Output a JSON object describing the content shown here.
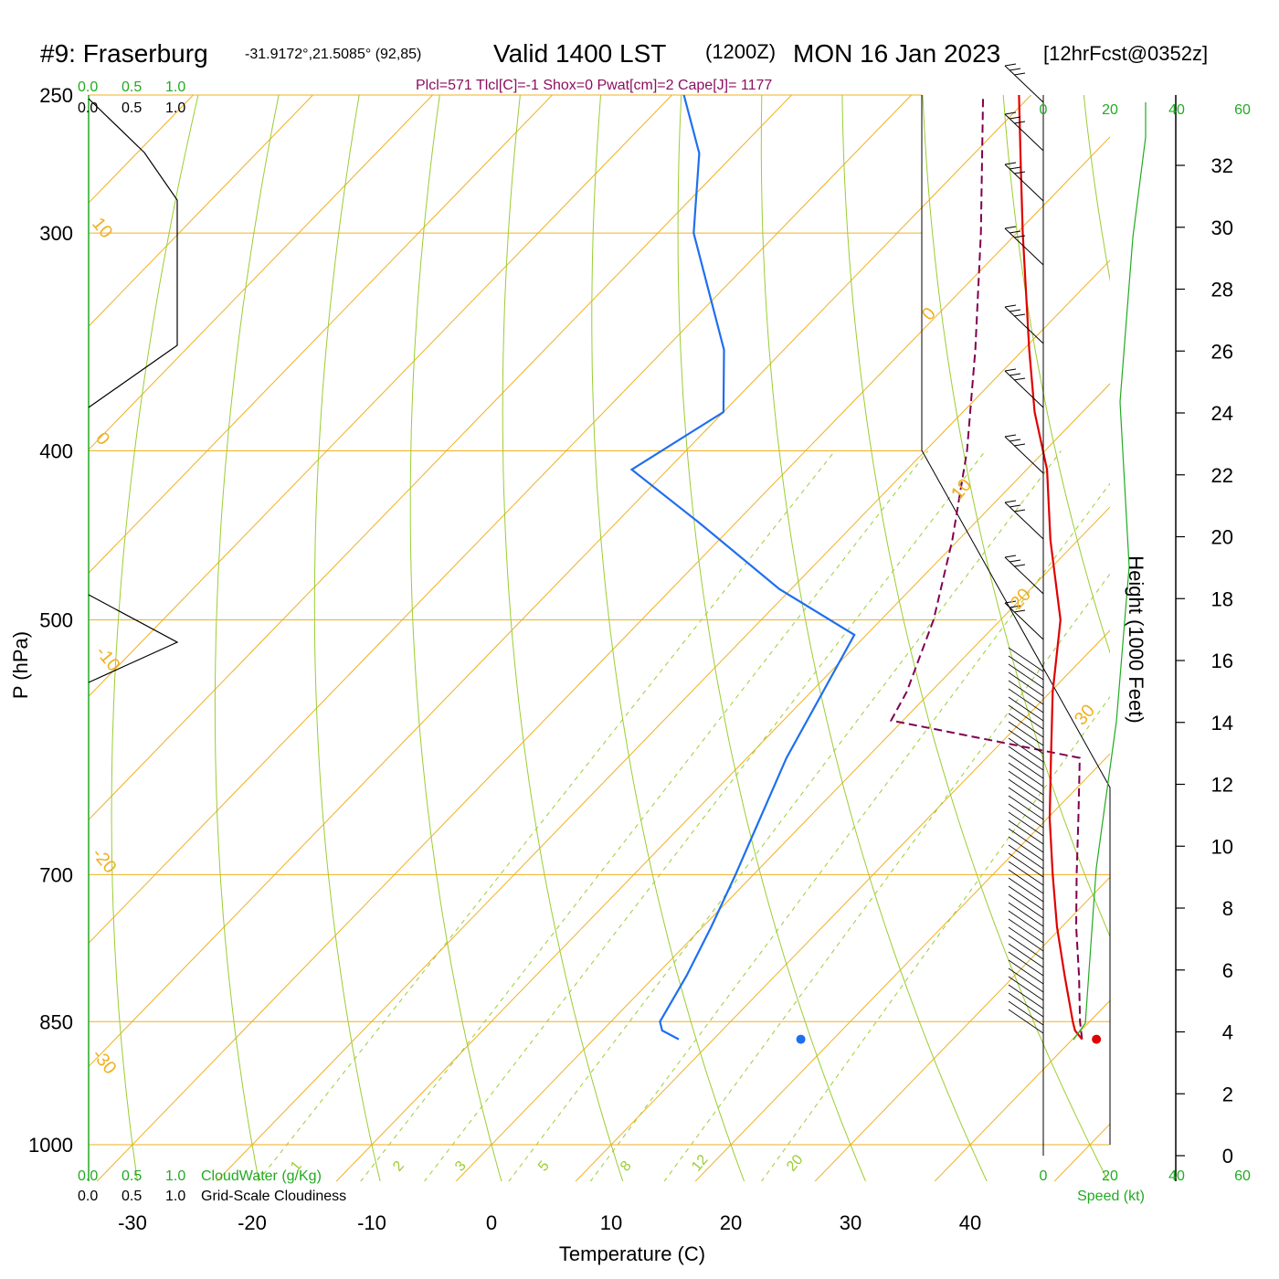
{
  "header": {
    "station": "#9: Fraserburg",
    "coords": "-31.9172°,21.5085° (92,85)",
    "valid": "Valid 1400 LST",
    "utc": "(1200Z)",
    "date": "MON 16 Jan 2023",
    "forecast": "[12hrFcst@0352z]",
    "indices": "Plcl=571 Tlcl[C]=-1 Shox=0 Pwat[cm]=2 Cape[J]= 1177"
  },
  "colors": {
    "temperature": "#e00000",
    "dewpoint": "#1e6ff0",
    "parcel": "#800050",
    "isotherm": "#f0b020",
    "dry_adiabat": "#9acd32",
    "mixing_ratio": "#9acd32",
    "wind_speed": "#22aa22",
    "cloud": "#000000"
  },
  "chart_data": {
    "type": "skew-t",
    "xlabel": "Temperature (C)",
    "ylabel": "P (hPa)",
    "right_axis_label": "Height (1000 Feet)",
    "x_ticks": [
      "-30",
      "-20",
      "-10",
      "0",
      "10",
      "20",
      "30",
      "40"
    ],
    "pressure_ticks": [
      "250",
      "300",
      "400",
      "500",
      "700",
      "850",
      "1000"
    ],
    "pressure_values": [
      250,
      300,
      400,
      500,
      700,
      850,
      1000
    ],
    "height_ticks": [
      "0",
      "2",
      "4",
      "6",
      "8",
      "10",
      "12",
      "14",
      "16",
      "18",
      "20",
      "22",
      "24",
      "26",
      "28",
      "30",
      "32"
    ],
    "height_values": [
      0,
      2,
      4,
      6,
      8,
      10,
      12,
      14,
      16,
      18,
      20,
      22,
      24,
      26,
      28,
      30,
      32
    ],
    "isotherm_labels": [
      "10",
      "0",
      "-10",
      "-20",
      "-30",
      "0",
      "10",
      "20",
      "30"
    ],
    "mixing_ratio_labels": [
      "1",
      "2",
      "3",
      "5",
      "8",
      "12",
      "20"
    ],
    "temperature_profile": [
      {
        "p": 870,
        "t": 40.8
      },
      {
        "p": 860,
        "t": 39.5
      },
      {
        "p": 850,
        "t": 38.6
      },
      {
        "p": 800,
        "t": 34.2
      },
      {
        "p": 750,
        "t": 29.6
      },
      {
        "p": 700,
        "t": 25.0
      },
      {
        "p": 650,
        "t": 20.2
      },
      {
        "p": 600,
        "t": 15.4
      },
      {
        "p": 550,
        "t": 10.2
      },
      {
        "p": 500,
        "t": 5.0
      },
      {
        "p": 450,
        "t": -2.3
      },
      {
        "p": 410,
        "t": -8.3
      },
      {
        "p": 380,
        "t": -14.0
      },
      {
        "p": 350,
        "t": -19.5
      },
      {
        "p": 300,
        "t": -29.5
      },
      {
        "p": 275,
        "t": -35.0
      },
      {
        "p": 250,
        "t": -41.0
      }
    ],
    "dewpoint_profile": [
      {
        "p": 870,
        "t": 7.1
      },
      {
        "p": 860,
        "t": 5.0
      },
      {
        "p": 850,
        "t": 4.1
      },
      {
        "p": 800,
        "t": 2.6
      },
      {
        "p": 750,
        "t": 0.7
      },
      {
        "p": 700,
        "t": -1.5
      },
      {
        "p": 650,
        "t": -4.0
      },
      {
        "p": 600,
        "t": -6.7
      },
      {
        "p": 550,
        "t": -9.0
      },
      {
        "p": 510,
        "t": -11.0
      },
      {
        "p": 480,
        "t": -21.0
      },
      {
        "p": 440,
        "t": -33.0
      },
      {
        "p": 410,
        "t": -43.0
      },
      {
        "p": 380,
        "t": -40.0
      },
      {
        "p": 350,
        "t": -45.0
      },
      {
        "p": 300,
        "t": -57.0
      },
      {
        "p": 270,
        "t": -63.0
      },
      {
        "p": 250,
        "t": -69.0
      }
    ],
    "parcel_profile": [
      {
        "p": 870,
        "t": 40.8
      },
      {
        "p": 850,
        "t": 39.2
      },
      {
        "p": 800,
        "t": 35.4
      },
      {
        "p": 750,
        "t": 31.2
      },
      {
        "p": 700,
        "t": 27.0
      },
      {
        "p": 650,
        "t": 22.6
      },
      {
        "p": 600,
        "t": 17.8
      },
      {
        "p": 571,
        "t": -1.0
      },
      {
        "p": 550,
        "t": -2.0
      },
      {
        "p": 500,
        "t": -5.6
      },
      {
        "p": 450,
        "t": -10.5
      },
      {
        "p": 400,
        "t": -16.5
      },
      {
        "p": 350,
        "t": -24.0
      },
      {
        "p": 300,
        "t": -33.0
      },
      {
        "p": 250,
        "t": -44.0
      }
    ],
    "surface_points": [
      {
        "name": "surface-temperature",
        "t": 42,
        "p": 870
      },
      {
        "name": "surface-dewpoint",
        "t": 17.3,
        "p": 870
      }
    ],
    "wind_speed_ticks": [
      "0",
      "20",
      "40",
      "60"
    ],
    "wind_speed_label": "Speed (kt)",
    "cloud_scale": [
      "0.0",
      "0.5",
      "1.0"
    ],
    "cloudwater_label": "CloudWater (g/Kg)",
    "cloudiness_label": "Grid-Scale Cloudiness"
  }
}
